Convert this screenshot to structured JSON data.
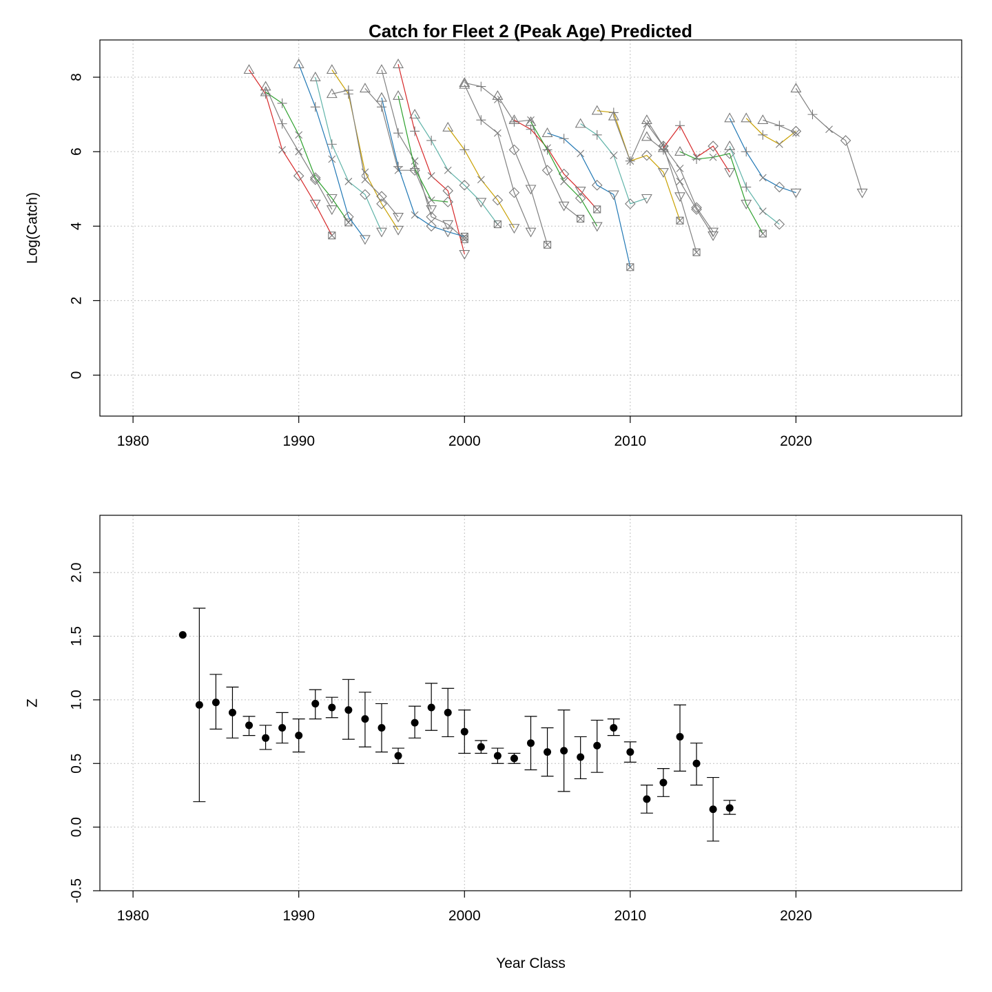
{
  "chart_data": [
    {
      "type": "line",
      "title": "Catch for Fleet 2 (Peak Age) Predicted",
      "xlabel": "",
      "ylabel": "Log(Catch)",
      "xlim": [
        1978,
        2030
      ],
      "ylim": [
        -1.1,
        9.0
      ],
      "grid": true,
      "x_ticks": [
        1980,
        1990,
        2000,
        2010,
        2020
      ],
      "y_ticks": [
        0,
        2,
        4,
        6,
        8
      ],
      "age_colors": [
        "#808080",
        "#d62728",
        "#2ca02c",
        "#1f77b4",
        "#5fb3a8",
        "#c8a000",
        "#808080",
        "#808080"
      ],
      "age_markers": [
        "triangle",
        "plus",
        "cross",
        "diamond",
        "triangle-down",
        "boxcross"
      ],
      "cohorts": [
        {
          "start_year": 1988,
          "values": [
            7.75,
            6.75,
            6.0,
            5.25,
            4.45
          ]
        },
        {
          "start_year": 1987,
          "values": [
            8.2,
            7.55,
            6.05,
            5.35,
            4.6,
            3.75
          ]
        },
        {
          "start_year": 1988,
          "values": [
            7.6,
            7.3,
            6.45,
            5.3,
            4.75,
            4.1
          ]
        },
        {
          "start_year": 1990,
          "values": [
            8.35,
            7.2,
            5.8,
            4.25,
            3.65
          ]
        },
        {
          "start_year": 1991,
          "values": [
            8.0,
            6.2,
            5.2,
            4.85,
            3.85
          ]
        },
        {
          "start_year": 1992,
          "values": [
            8.2,
            7.55,
            5.45,
            4.6,
            3.9
          ]
        },
        {
          "start_year": 1992,
          "values": [
            7.55,
            7.65,
            5.25,
            4.8,
            4.25
          ]
        },
        {
          "start_year": 1994,
          "values": [
            7.7,
            7.2,
            5.5,
            5.5,
            4.45
          ]
        },
        {
          "start_year": 1995,
          "values": [
            8.2,
            6.5,
            5.75,
            4.25,
            4.05,
            3.65
          ]
        },
        {
          "start_year": 1996,
          "values": [
            8.35,
            6.55,
            5.35,
            4.95,
            3.25
          ]
        },
        {
          "start_year": 1996,
          "values": [
            7.5,
            5.55,
            4.7,
            4.65
          ]
        },
        {
          "start_year": 1995,
          "values": [
            7.45,
            5.6,
            4.3,
            4.0,
            3.85,
            3.72
          ]
        },
        {
          "start_year": 1997,
          "values": [
            7.0,
            6.3,
            5.5,
            5.1,
            4.65,
            4.05
          ]
        },
        {
          "start_year": 1999,
          "values": [
            6.65,
            6.05,
            5.25,
            4.7,
            3.95
          ]
        },
        {
          "start_year": 2000,
          "values": [
            7.8,
            6.85,
            6.5,
            4.9,
            3.85
          ]
        },
        {
          "start_year": 2000,
          "values": [
            7.85,
            7.75,
            7.4,
            6.05,
            5.0,
            3.5
          ]
        },
        {
          "start_year": 2002,
          "values": [
            7.5,
            6.8,
            6.85,
            5.5,
            4.55,
            4.2
          ]
        },
        {
          "start_year": 2003,
          "values": [
            6.85,
            6.6,
            6.1,
            5.4,
            4.95,
            4.45
          ]
        },
        {
          "start_year": 2004,
          "values": [
            6.8,
            6.05,
            5.2,
            4.75,
            4.0
          ]
        },
        {
          "start_year": 2005,
          "values": [
            6.5,
            6.35,
            5.95,
            5.1,
            4.85,
            2.9
          ]
        },
        {
          "start_year": 2007,
          "values": [
            6.75,
            6.45,
            5.9,
            4.6,
            4.75
          ]
        },
        {
          "start_year": 2008,
          "values": [
            7.1,
            7.05,
            5.75,
            5.9,
            5.45,
            4.15
          ]
        },
        {
          "start_year": 2009,
          "values": [
            6.95,
            5.75,
            6.75,
            6.15,
            4.8,
            3.3
          ]
        },
        {
          "start_year": 2011,
          "values": [
            6.85,
            6.15,
            5.55,
            4.5,
            3.85
          ]
        },
        {
          "start_year": 2011,
          "values": [
            6.4,
            6.05,
            5.2,
            4.45,
            3.75
          ]
        },
        {
          "start_year": 2012,
          "values": [
            6.1,
            6.7,
            5.85,
            6.15,
            5.45
          ]
        },
        {
          "start_year": 2013,
          "values": [
            6.0,
            5.8,
            5.85,
            5.95,
            4.6,
            3.8
          ]
        },
        {
          "start_year": 2016,
          "values": [
            6.9,
            6.0,
            5.3,
            5.05,
            4.9
          ]
        },
        {
          "start_year": 2016,
          "values": [
            6.15,
            5.05,
            4.4,
            4.05
          ]
        },
        {
          "start_year": 2017,
          "values": [
            6.9,
            6.45,
            6.2,
            6.55
          ]
        },
        {
          "start_year": 2018,
          "values": [
            6.85,
            6.7,
            6.5
          ]
        },
        {
          "start_year": 2020,
          "values": [
            7.7,
            7.0,
            6.6,
            6.3,
            4.9
          ]
        }
      ]
    },
    {
      "type": "scatter",
      "title": "",
      "xlabel": "Year Class",
      "ylabel": "Z",
      "xlim": [
        1978,
        2030
      ],
      "ylim": [
        -0.5,
        2.45
      ],
      "grid": true,
      "x_ticks": [
        1980,
        1990,
        2000,
        2010,
        2020
      ],
      "y_ticks": [
        -0.5,
        0.0,
        0.5,
        1.0,
        1.5,
        2.0
      ],
      "points": [
        {
          "x": 1983,
          "z": 1.51
        },
        {
          "x": 1984,
          "z": 0.96,
          "lo": 0.2,
          "hi": 1.72
        },
        {
          "x": 1985,
          "z": 0.98,
          "lo": 0.77,
          "hi": 1.2
        },
        {
          "x": 1986,
          "z": 0.9,
          "lo": 0.7,
          "hi": 1.1
        },
        {
          "x": 1987,
          "z": 0.8,
          "lo": 0.72,
          "hi": 0.87
        },
        {
          "x": 1988,
          "z": 0.7,
          "lo": 0.61,
          "hi": 0.8
        },
        {
          "x": 1989,
          "z": 0.78,
          "lo": 0.66,
          "hi": 0.9
        },
        {
          "x": 1990,
          "z": 0.72,
          "lo": 0.59,
          "hi": 0.85
        },
        {
          "x": 1991,
          "z": 0.97,
          "lo": 0.85,
          "hi": 1.08
        },
        {
          "x": 1992,
          "z": 0.94,
          "lo": 0.86,
          "hi": 1.02
        },
        {
          "x": 1993,
          "z": 0.92,
          "lo": 0.69,
          "hi": 1.16
        },
        {
          "x": 1994,
          "z": 0.85,
          "lo": 0.63,
          "hi": 1.06
        },
        {
          "x": 1995,
          "z": 0.78,
          "lo": 0.59,
          "hi": 0.97
        },
        {
          "x": 1996,
          "z": 0.56,
          "lo": 0.5,
          "hi": 0.62
        },
        {
          "x": 1997,
          "z": 0.82,
          "lo": 0.7,
          "hi": 0.95
        },
        {
          "x": 1998,
          "z": 0.94,
          "lo": 0.76,
          "hi": 1.13
        },
        {
          "x": 1999,
          "z": 0.9,
          "lo": 0.71,
          "hi": 1.09
        },
        {
          "x": 2000,
          "z": 0.75,
          "lo": 0.58,
          "hi": 0.92
        },
        {
          "x": 2001,
          "z": 0.63,
          "lo": 0.58,
          "hi": 0.68
        },
        {
          "x": 2002,
          "z": 0.56,
          "lo": 0.5,
          "hi": 0.62
        },
        {
          "x": 2003,
          "z": 0.54,
          "lo": 0.5,
          "hi": 0.58
        },
        {
          "x": 2004,
          "z": 0.66,
          "lo": 0.45,
          "hi": 0.87
        },
        {
          "x": 2005,
          "z": 0.59,
          "lo": 0.4,
          "hi": 0.78
        },
        {
          "x": 2006,
          "z": 0.6,
          "lo": 0.28,
          "hi": 0.92
        },
        {
          "x": 2007,
          "z": 0.55,
          "lo": 0.38,
          "hi": 0.71
        },
        {
          "x": 2008,
          "z": 0.64,
          "lo": 0.43,
          "hi": 0.84
        },
        {
          "x": 2009,
          "z": 0.78,
          "lo": 0.72,
          "hi": 0.85
        },
        {
          "x": 2010,
          "z": 0.59,
          "lo": 0.51,
          "hi": 0.67
        },
        {
          "x": 2011,
          "z": 0.22,
          "lo": 0.11,
          "hi": 0.33
        },
        {
          "x": 2012,
          "z": 0.35,
          "lo": 0.24,
          "hi": 0.46
        },
        {
          "x": 2013,
          "z": 0.71,
          "lo": 0.44,
          "hi": 0.96
        },
        {
          "x": 2014,
          "z": 0.5,
          "lo": 0.33,
          "hi": 0.66
        },
        {
          "x": 2015,
          "z": 0.14,
          "lo": -0.11,
          "hi": 0.39
        },
        {
          "x": 2016,
          "z": 0.15,
          "lo": 0.1,
          "hi": 0.21
        }
      ]
    }
  ]
}
